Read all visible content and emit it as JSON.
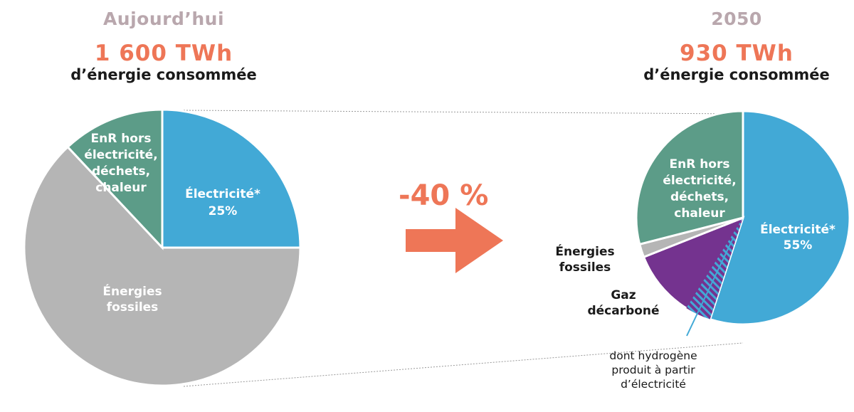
{
  "left": {
    "period": "Aujourd’hui",
    "amount": "1 600 TWh",
    "subtitle": "d’énergie consommée"
  },
  "right": {
    "period": "2050",
    "amount": "930 TWh",
    "subtitle": "d’énergie consommée"
  },
  "change_label": "-40 %",
  "note": [
    "dont hydrogène",
    "produit à partir",
    "d’électricité"
  ],
  "colors": {
    "electricity": "#42a9d6",
    "fossil": "#b5b5b5",
    "renewables": "#5c9c88",
    "decarb_gas": "#74338f",
    "accent": "#ee7657",
    "period": "#b9a7ad"
  },
  "chart_data": [
    {
      "type": "pie",
      "title": "Aujourd’hui",
      "total": "1 600 TWh",
      "slices": [
        {
          "label": [
            "Électricité*",
            "25%"
          ],
          "value": 25,
          "color": "#42a9d6"
        },
        {
          "label": [
            "Énergies",
            "fossiles"
          ],
          "value": 63,
          "color": "#b5b5b5"
        },
        {
          "label": [
            "EnR hors",
            "électricité,",
            "déchets,",
            "chaleur"
          ],
          "value": 12,
          "color": "#5c9c88"
        }
      ]
    },
    {
      "type": "pie",
      "title": "2050",
      "total": "930 TWh",
      "slices": [
        {
          "label": [
            "Électricité*",
            "55%"
          ],
          "value": 55,
          "color": "#42a9d6"
        },
        {
          "label": [
            "Gaz",
            "décarboné"
          ],
          "value": 14,
          "color": "#74338f",
          "hatched_part": "dont hydrogène produit à partir d’électricité"
        },
        {
          "label": [
            "Énergies",
            "fossiles"
          ],
          "value": 2,
          "color": "#b5b5b5"
        },
        {
          "label": [
            "EnR hors",
            "électricité,",
            "déchets,",
            "chaleur"
          ],
          "value": 29,
          "color": "#5c9c88"
        }
      ]
    }
  ]
}
